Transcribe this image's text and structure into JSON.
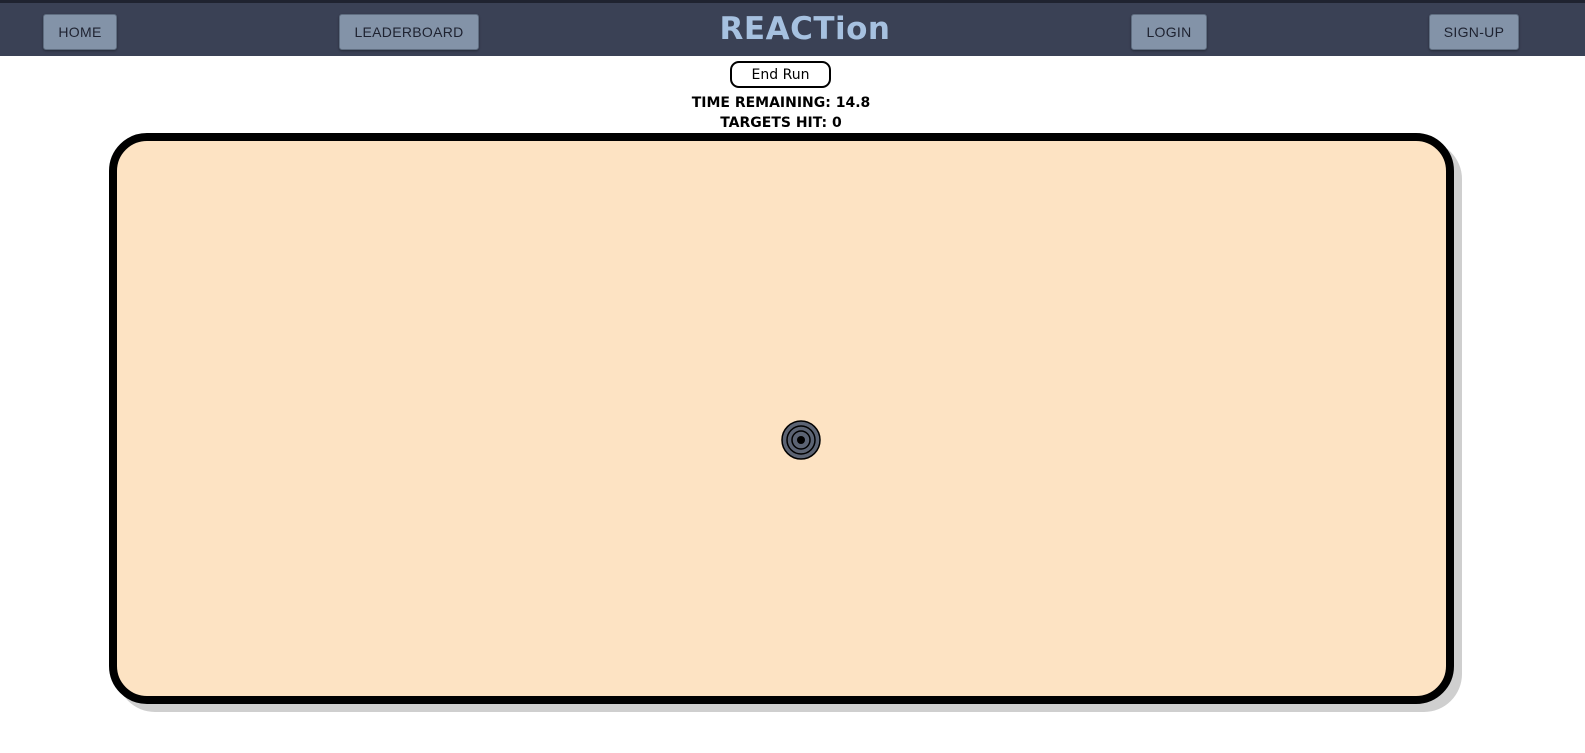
{
  "nav": {
    "home_label": "HOME",
    "leaderboard_label": "LEADERBOARD",
    "logo_text": "REACTion",
    "login_label": "LOGIN",
    "signup_label": "SIGN-UP"
  },
  "game": {
    "end_run_label": "End Run",
    "time_remaining_label": "TIME REMAINING:",
    "time_remaining_value": "14.8",
    "targets_hit_label": "TARGETS HIT:",
    "targets_hit_value": "0",
    "target_icon": "bullseye-target-icon"
  },
  "colors": {
    "navbar": "#3a4155",
    "nav_button": "#8393a8",
    "logo": "#a6c1e0",
    "arena_background": "#fde3c3",
    "target": "#5b6373"
  }
}
